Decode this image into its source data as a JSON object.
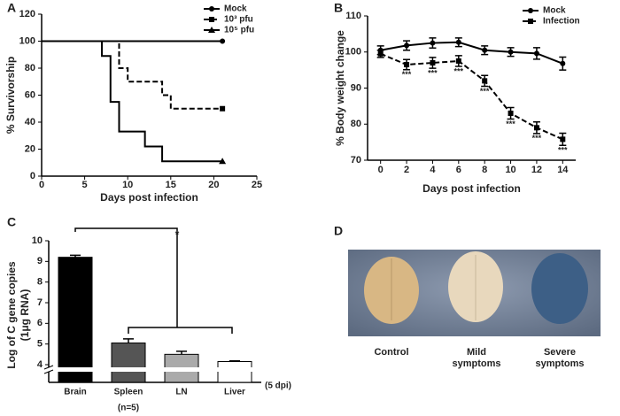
{
  "chart_data": [
    {
      "type": "step",
      "panel_label": "A",
      "x_label": "Days post infection",
      "y_label": "% Survivorship",
      "xlim": [
        0,
        25
      ],
      "xticks": [
        0,
        5,
        10,
        15,
        20,
        25
      ],
      "ylim": [
        0,
        120
      ],
      "yticks": [
        0,
        20,
        40,
        60,
        80,
        100,
        120
      ],
      "legend": "upper right",
      "series": [
        {
          "name": "Mock",
          "color": "#000000",
          "line_style": "solid",
          "marker": "circle",
          "x": [
            0,
            21
          ],
          "values": [
            100,
            100
          ]
        },
        {
          "name": "10³ pfu",
          "color": "#000000",
          "line_style": "dashed",
          "marker": "square",
          "x": [
            0,
            9,
            10,
            14,
            15,
            21
          ],
          "values": [
            100,
            80,
            70,
            60,
            50,
            50
          ]
        },
        {
          "name": "10⁵ pfu",
          "color": "#000000",
          "line_style": "solid",
          "marker": "triangle",
          "x": [
            0,
            7,
            8,
            9,
            12,
            14,
            21
          ],
          "values": [
            100,
            89,
            55,
            33,
            22,
            11,
            11
          ]
        }
      ]
    },
    {
      "type": "line",
      "panel_label": "B",
      "x_label": "Days post infection",
      "y_label": "% Body weight change",
      "xlim": [
        -1,
        15
      ],
      "xticks": [
        0,
        2,
        4,
        6,
        8,
        10,
        12,
        14
      ],
      "ylim": [
        70,
        110
      ],
      "yticks": [
        70,
        80,
        90,
        100,
        110
      ],
      "legend": "upper right",
      "series": [
        {
          "name": "Mock",
          "color": "#000000",
          "line_style": "solid",
          "marker": "circle",
          "x": [
            0,
            2,
            4,
            6,
            8,
            10,
            12,
            14
          ],
          "values": [
            100.5,
            101.8,
            102.5,
            102.7,
            100.5,
            100,
            99.6,
            96.8
          ],
          "errors": [
            1.2,
            1.3,
            1.4,
            1.2,
            1.2,
            1.2,
            1.6,
            1.8
          ]
        },
        {
          "name": "Infection",
          "color": "#000000",
          "line_style": "dashed",
          "marker": "square",
          "x": [
            0,
            2,
            4,
            6,
            8,
            10,
            12,
            14
          ],
          "values": [
            99.5,
            96.5,
            97,
            97.5,
            92,
            83,
            79,
            75.8
          ],
          "errors": [
            1,
            1.4,
            1.5,
            1.5,
            1.5,
            1.6,
            1.6,
            1.7
          ]
        }
      ],
      "annotations": [
        {
          "x": 2,
          "text": "***"
        },
        {
          "x": 4,
          "text": "***"
        },
        {
          "x": 6,
          "text": "***"
        },
        {
          "x": 8,
          "text": "***"
        },
        {
          "x": 10,
          "text": "***"
        },
        {
          "x": 12,
          "text": "***"
        },
        {
          "x": 14,
          "text": "***"
        }
      ]
    },
    {
      "type": "bar",
      "panel_label": "C",
      "y_label": "Log of C gene copies",
      "y_sublabel": "(1μg RNA)",
      "categories": [
        "Brain",
        "Spleen",
        "LN",
        "Liver"
      ],
      "values": [
        9.2,
        5.05,
        4.5,
        4.15
      ],
      "errors": [
        0.1,
        0.2,
        0.15,
        0.03
      ],
      "colors": [
        "#000000",
        "#555555",
        "#aaaaaa",
        "#ffffff"
      ],
      "ylim": [
        4,
        10
      ],
      "yticks": [
        4,
        5,
        6,
        7,
        8,
        9,
        10
      ],
      "axis_note": "(5 dpi)",
      "sample_note": "(n=5)",
      "annotations": [
        {
          "text": "*"
        }
      ]
    }
  ],
  "image_panel": {
    "panel_label": "D",
    "captions": [
      "Control",
      "Mild symptoms",
      "Severe symptoms"
    ]
  }
}
